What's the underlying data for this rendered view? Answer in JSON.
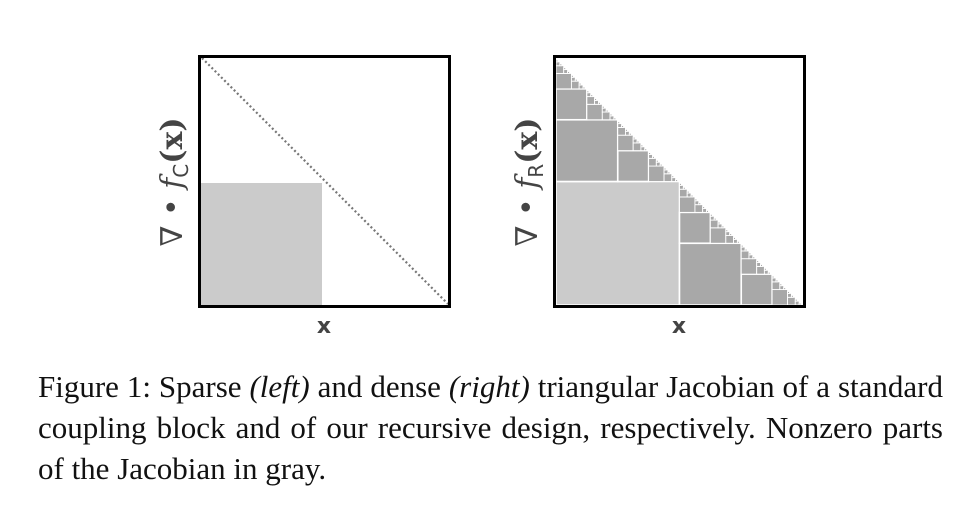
{
  "figure": {
    "panels": [
      {
        "id": "left",
        "ylabel_prefix": "∇ • f",
        "ylabel_sub": "C",
        "ylabel_suffix": "(x)",
        "xlabel": "x"
      },
      {
        "id": "right",
        "ylabel_prefix": "∇ • f",
        "ylabel_sub": "R",
        "ylabel_suffix": "(x)",
        "xlabel": "x"
      }
    ],
    "colors": {
      "frame": "#000000",
      "light_gray": "#cbcbcb",
      "dark_gray": "#a8a8a8",
      "diagonal": "#777777"
    }
  },
  "caption": {
    "label": "Figure 1:",
    "t1": " Sparse ",
    "t2": "(left)",
    "t3": " and dense ",
    "t4": "(right)",
    "t5": " triangular Jacobian of a standard coupling block and of our recursive design, respectively. Nonzero parts of the Jacobian in gray."
  }
}
